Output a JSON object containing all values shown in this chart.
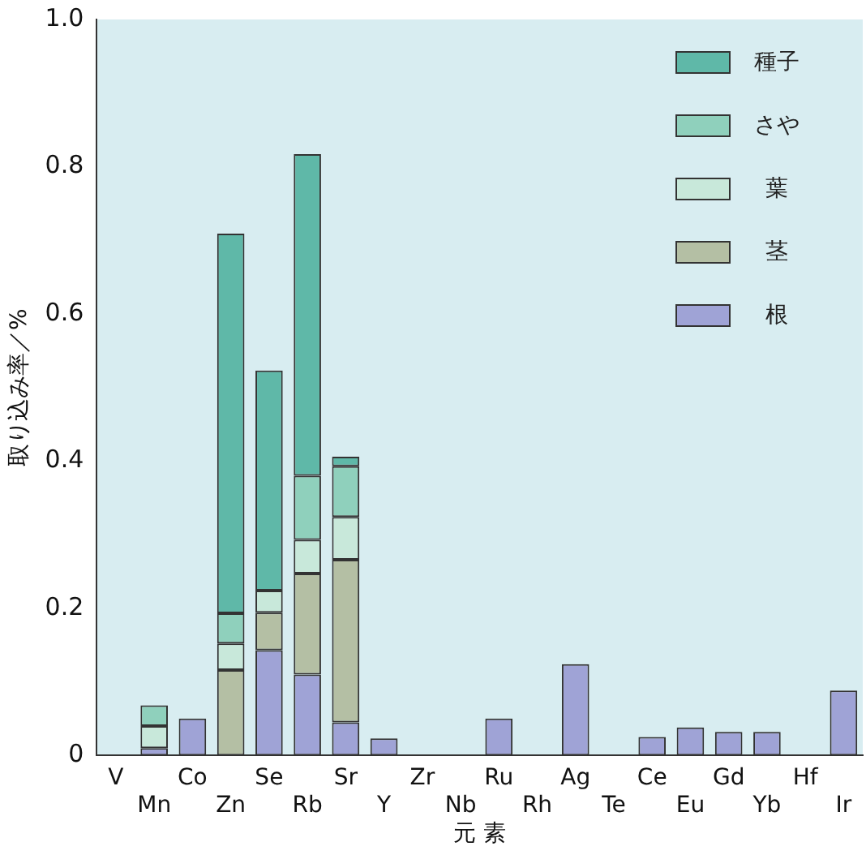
{
  "chart_data": {
    "type": "bar",
    "stacked": true,
    "xlabel": "元 素",
    "ylabel": "取り込み率／%",
    "categories": [
      "V",
      "Mn",
      "Co",
      "Zn",
      "Se",
      "Rb",
      "Sr",
      "Y",
      "Zr",
      "Nb",
      "Ru",
      "Rh",
      "Ag",
      "Te",
      "Ce",
      "Eu",
      "Gd",
      "Yb",
      "Hf",
      "Ir"
    ],
    "series": [
      {
        "name": "根",
        "color": "#9fa3d6",
        "values": [
          0,
          0.01,
          0.05,
          0,
          0.143,
          0.11,
          0.045,
          0.023,
          0,
          0,
          0.05,
          0,
          0.124,
          0,
          0.025,
          0.038,
          0.032,
          0.032,
          0,
          0.088
        ]
      },
      {
        "name": "茎",
        "color": "#b4bfa4",
        "values": [
          0,
          0,
          0,
          0.116,
          0.051,
          0.137,
          0.221,
          0,
          0,
          0,
          0,
          0,
          0,
          0,
          0,
          0,
          0,
          0,
          0,
          0
        ]
      },
      {
        "name": "葉",
        "color": "#c8e8da",
        "values": [
          0,
          0.03,
          0,
          0.036,
          0.03,
          0.046,
          0.058,
          0,
          0,
          0,
          0,
          0,
          0,
          0,
          0,
          0,
          0,
          0,
          0,
          0
        ]
      },
      {
        "name": "さや",
        "color": "#8fd0bc",
        "values": [
          0,
          0.028,
          0,
          0.041,
          0,
          0.087,
          0.069,
          0,
          0,
          0,
          0,
          0,
          0,
          0,
          0,
          0,
          0,
          0,
          0,
          0
        ]
      },
      {
        "name": "種子",
        "color": "#5fb8a8",
        "values": [
          0,
          0,
          0,
          0.516,
          0.299,
          0.437,
          0.013,
          0,
          0,
          0,
          0,
          0,
          0,
          0,
          0,
          0,
          0,
          0,
          0,
          0
        ]
      }
    ],
    "ylim": [
      0,
      1
    ],
    "yticks": [
      0,
      0.2,
      0.4,
      0.6,
      0.8,
      {
        "value": 1,
        "label": "1.0"
      }
    ],
    "grid": false,
    "legend": "top right"
  }
}
